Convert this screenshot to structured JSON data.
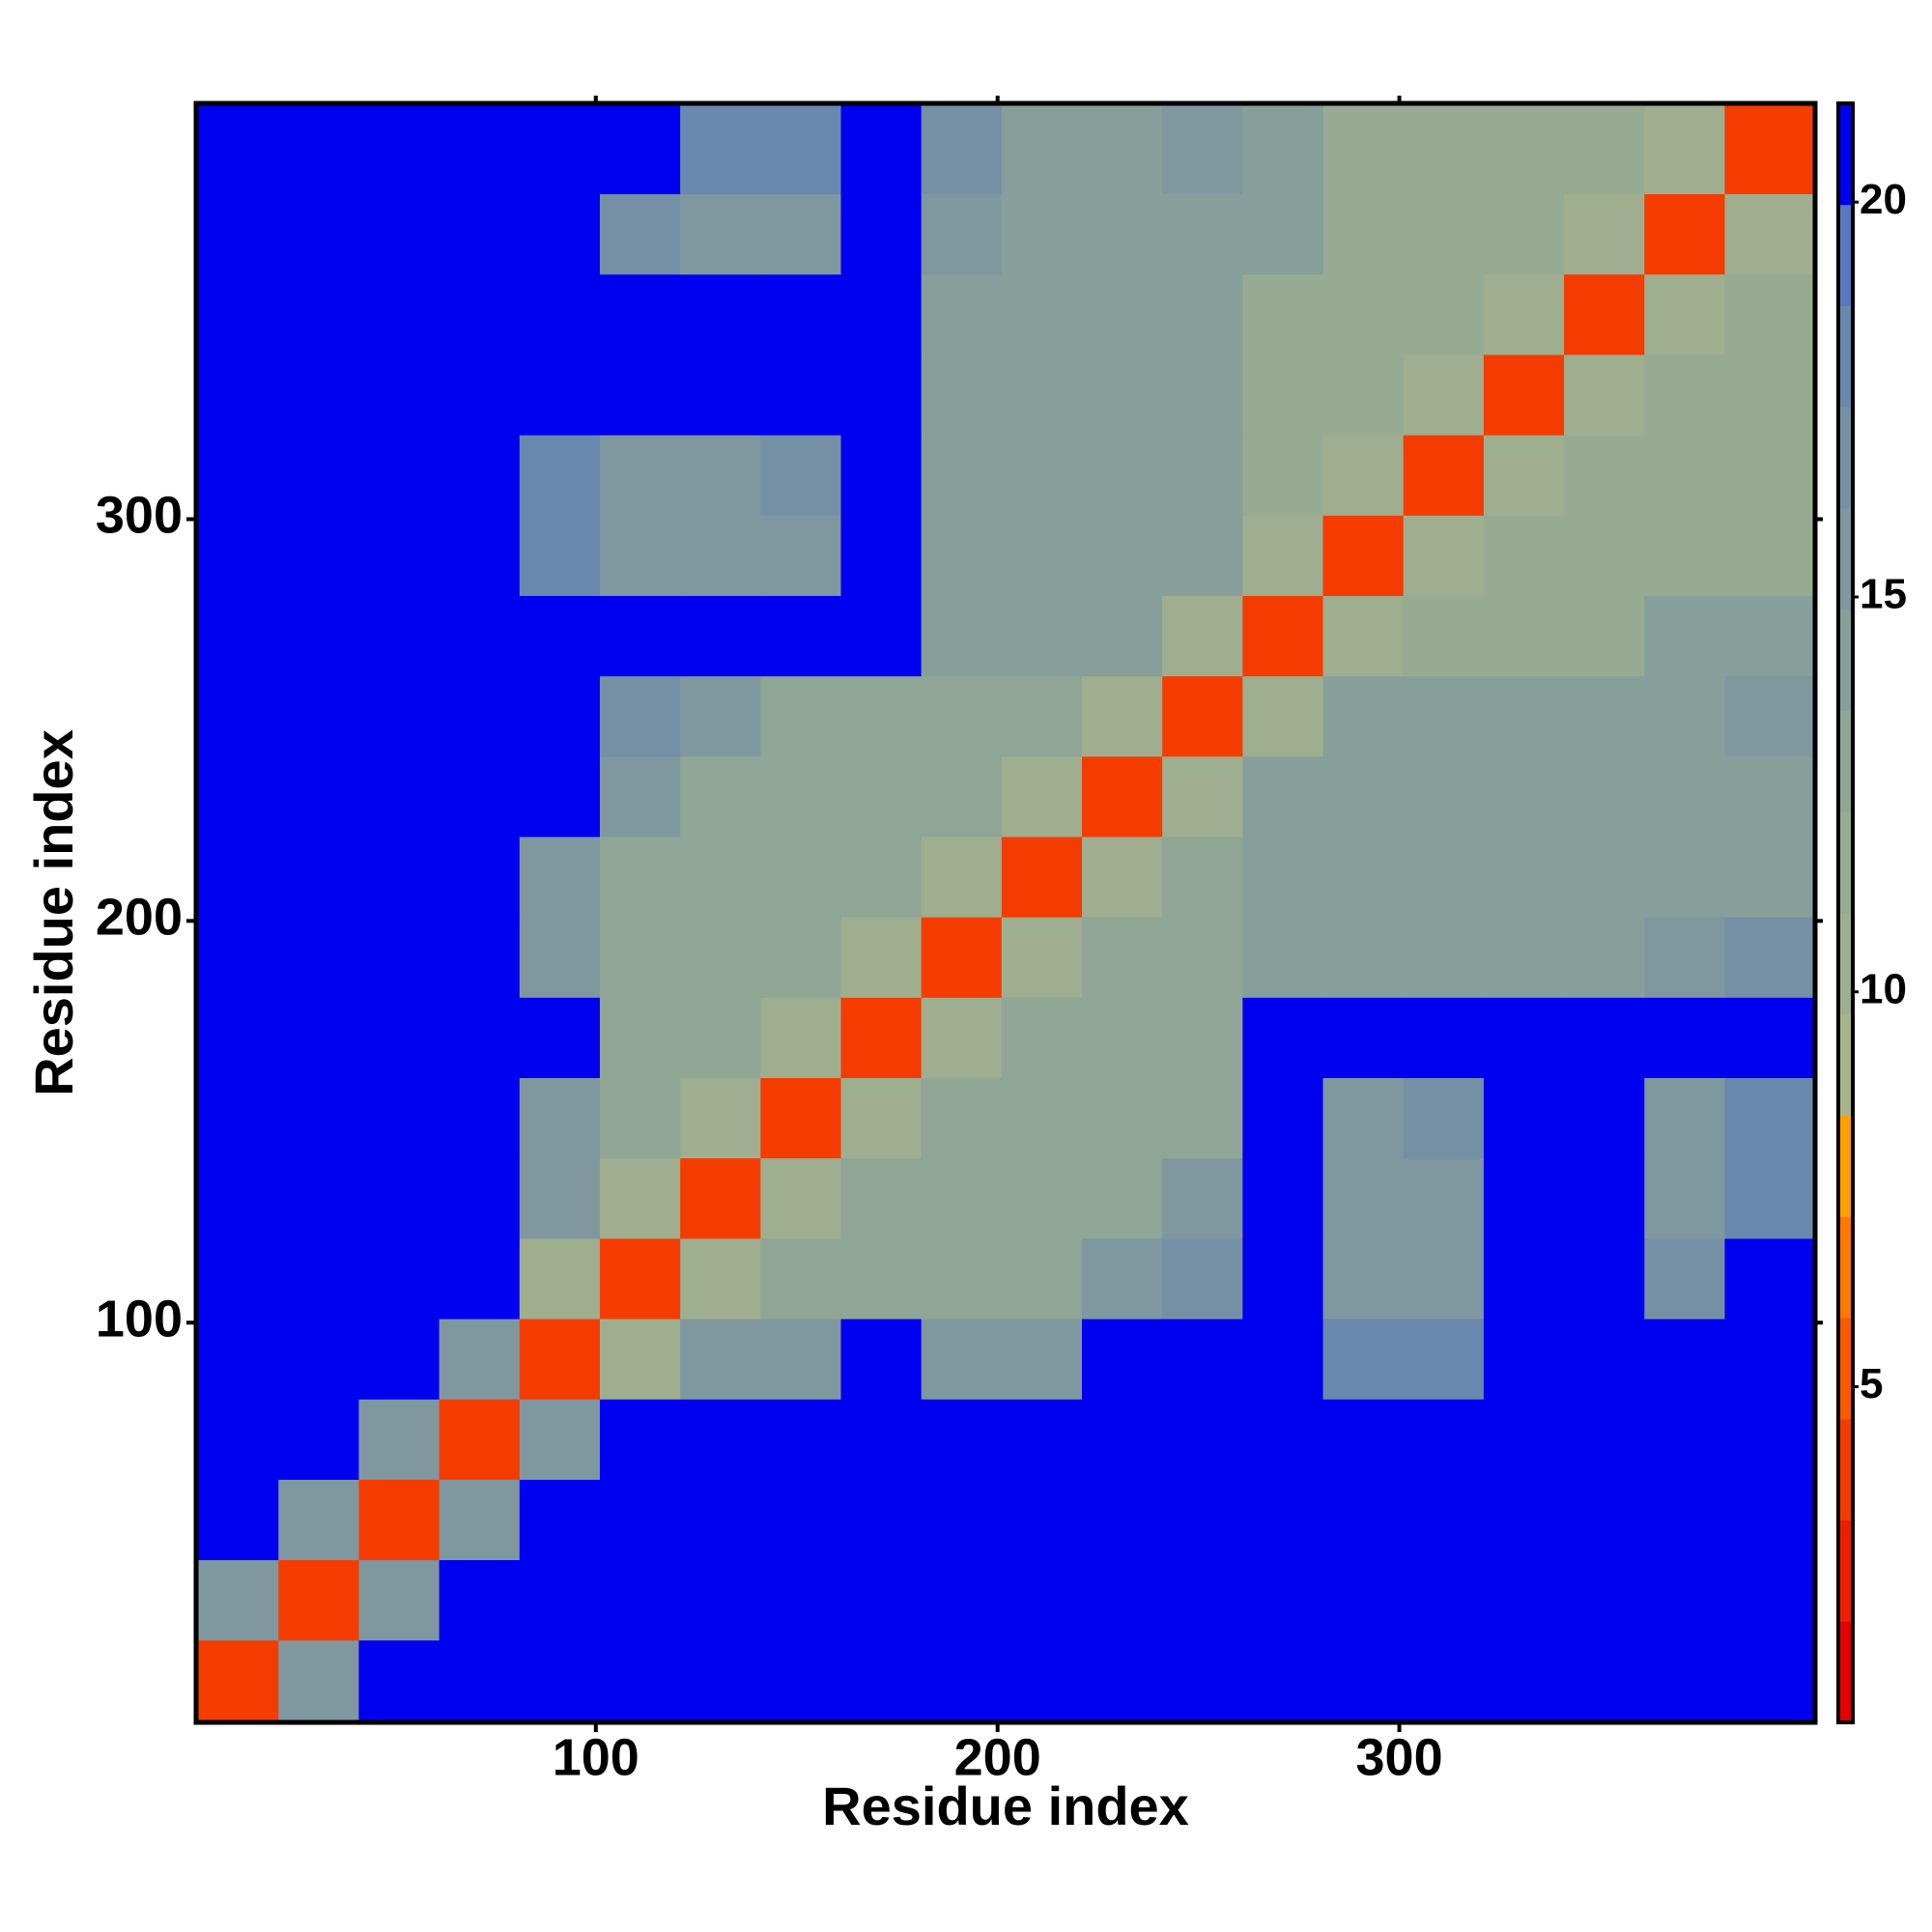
{
  "chart_data": {
    "type": "heatmap",
    "x_label": "Residue index",
    "y_label": "Residue index",
    "xbins": [
      1,
      21,
      41,
      61,
      81,
      101,
      121,
      141,
      161,
      181,
      201,
      221,
      241,
      261,
      281,
      301,
      321,
      341,
      361,
      381,
      403
    ],
    "ybins": [
      1,
      21,
      41,
      61,
      81,
      101,
      121,
      141,
      161,
      181,
      201,
      221,
      241,
      261,
      281,
      301,
      321,
      341,
      361,
      381,
      403
    ],
    "xlim": [
      0.5,
      403.5
    ],
    "ylim": [
      0.5,
      403.5
    ],
    "xticks": [
      100,
      200,
      300
    ],
    "yticks": [
      100,
      200,
      300
    ],
    "clim": [
      0.75,
      21.25
    ],
    "cticks": [
      5,
      10,
      15,
      20
    ],
    "colormap": [
      "#e60000",
      "#f01e00",
      "#f53c00",
      "#fa5a00",
      "#ff7800",
      "#ffa000",
      "#a9b38a",
      "#9fae8e",
      "#97aa92",
      "#8fa596",
      "#879f9a",
      "#7f979f",
      "#7590a5",
      "#6a88ad",
      "#5a78c0",
      "#0000f0"
    ],
    "z": [
      [
        4,
        16,
        21,
        21,
        21,
        21,
        21,
        21,
        21,
        21,
        21,
        21,
        21,
        21,
        21,
        21,
        21,
        21,
        21,
        21
      ],
      [
        16,
        4,
        16,
        21,
        21,
        21,
        21,
        21,
        21,
        21,
        21,
        21,
        21,
        21,
        21,
        21,
        21,
        21,
        21,
        21
      ],
      [
        21,
        16,
        4,
        16,
        21,
        21,
        21,
        21,
        21,
        21,
        21,
        21,
        21,
        21,
        21,
        21,
        21,
        21,
        21,
        21
      ],
      [
        21,
        21,
        16,
        4,
        16,
        21,
        21,
        21,
        21,
        21,
        21,
        21,
        21,
        21,
        21,
        21,
        21,
        21,
        21,
        21
      ],
      [
        21,
        21,
        21,
        16,
        4,
        10,
        16,
        16,
        21,
        15,
        15,
        21,
        21,
        21,
        18,
        18,
        21,
        21,
        21,
        21
      ],
      [
        21,
        21,
        21,
        21,
        10,
        4,
        10,
        13,
        13,
        13,
        13,
        15,
        17,
        21,
        16,
        16,
        21,
        21,
        17,
        21
      ],
      [
        21,
        21,
        21,
        21,
        16,
        10,
        4,
        10,
        13,
        13,
        13,
        13,
        15,
        21,
        15,
        16,
        21,
        21,
        15,
        18
      ],
      [
        21,
        21,
        21,
        21,
        16,
        13,
        10,
        4,
        10,
        13,
        13,
        13,
        13,
        21,
        15,
        17,
        21,
        21,
        16,
        18
      ],
      [
        21,
        21,
        21,
        21,
        21,
        13,
        13,
        10,
        4,
        10,
        13,
        13,
        13,
        21,
        21,
        21,
        21,
        21,
        21,
        21
      ],
      [
        21,
        21,
        21,
        21,
        15,
        13,
        13,
        13,
        10,
        4,
        10,
        13,
        13,
        14,
        14,
        14,
        14,
        14,
        16,
        17
      ],
      [
        21,
        21,
        21,
        21,
        15,
        13,
        13,
        13,
        13,
        10,
        4,
        10,
        13,
        14,
        14,
        14,
        14,
        14,
        14,
        14
      ],
      [
        21,
        21,
        21,
        21,
        21,
        15,
        13,
        13,
        13,
        13,
        10,
        4,
        10,
        14,
        14,
        14,
        14,
        14,
        14,
        14
      ],
      [
        21,
        21,
        21,
        21,
        21,
        17,
        15,
        13,
        13,
        13,
        13,
        10,
        4,
        10,
        14,
        14,
        14,
        14,
        14,
        15
      ],
      [
        21,
        21,
        21,
        21,
        21,
        21,
        21,
        21,
        21,
        14,
        14,
        14,
        10,
        4,
        10,
        12,
        12,
        12,
        14,
        14
      ],
      [
        21,
        21,
        21,
        21,
        18,
        16,
        15,
        15,
        21,
        14,
        14,
        14,
        14,
        10,
        4,
        10,
        12,
        12,
        12,
        12
      ],
      [
        21,
        21,
        21,
        21,
        18,
        16,
        16,
        17,
        21,
        14,
        14,
        14,
        14,
        12,
        10,
        4,
        10,
        12,
        12,
        12
      ],
      [
        21,
        21,
        21,
        21,
        21,
        21,
        21,
        21,
        21,
        14,
        14,
        14,
        14,
        12,
        12,
        10,
        4,
        10,
        12,
        12
      ],
      [
        21,
        21,
        21,
        21,
        21,
        21,
        21,
        21,
        21,
        14,
        14,
        14,
        14,
        12,
        12,
        12,
        10,
        4,
        10,
        12
      ],
      [
        21,
        21,
        21,
        21,
        21,
        17,
        15,
        16,
        21,
        16,
        14,
        14,
        14,
        14,
        12,
        12,
        12,
        10,
        4,
        10
      ],
      [
        21,
        21,
        21,
        21,
        21,
        21,
        18,
        18,
        21,
        17,
        14,
        14,
        15,
        14,
        12,
        12,
        12,
        12,
        10,
        4
      ]
    ]
  }
}
